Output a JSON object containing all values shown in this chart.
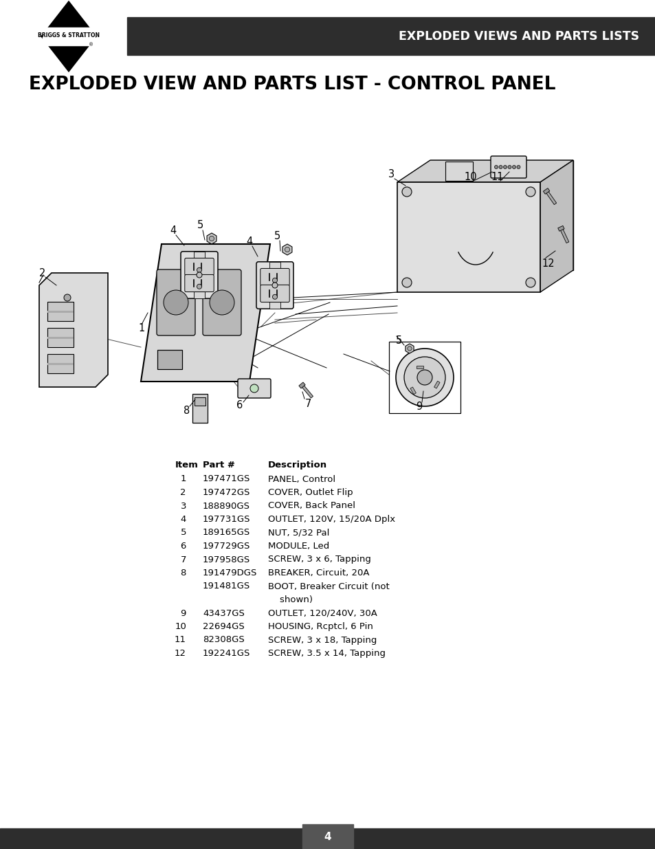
{
  "page_bg": "#ffffff",
  "header_bg": "#2d2d2d",
  "footer_bg": "#2d2d2d",
  "header_text": "EXPLODED VIEWS AND PARTS LISTS",
  "header_text_color": "#ffffff",
  "main_title": "EXPLODED VIEW AND PARTS LIST - CONTROL PANEL",
  "main_title_color": "#000000",
  "page_number": "4",
  "parts_data": [
    [
      "1",
      "197471GS",
      "PANEL, Control"
    ],
    [
      "2",
      "197472GS",
      "COVER, Outlet Flip"
    ],
    [
      "3",
      "188890GS",
      "COVER, Back Panel"
    ],
    [
      "4",
      "197731GS",
      "OUTLET, 120V, 15/20A Dplx"
    ],
    [
      "5",
      "189165GS",
      "NUT, 5/32 Pal"
    ],
    [
      "6",
      "197729GS",
      "MODULE, Led"
    ],
    [
      "7",
      "197958GS",
      "SCREW, 3 x 6, Tapping"
    ],
    [
      "8",
      "191479DGS",
      "BREAKER, Circuit, 20A"
    ],
    [
      "",
      "191481GS",
      "BOOT, Breaker Circuit (not"
    ],
    [
      "",
      "",
      "    shown)"
    ],
    [
      "9",
      "43437GS",
      "OUTLET, 120/240V, 30A"
    ],
    [
      "10",
      "22694GS",
      "HOUSING, Rcptcl, 6 Pin"
    ],
    [
      "11",
      "82308GS",
      "SCREW, 3 x 18, Tapping"
    ],
    [
      "12",
      "192241GS",
      "SCREW, 3.5 x 14, Tapping"
    ]
  ],
  "logo_text": "BRIGGS & STRATTON"
}
